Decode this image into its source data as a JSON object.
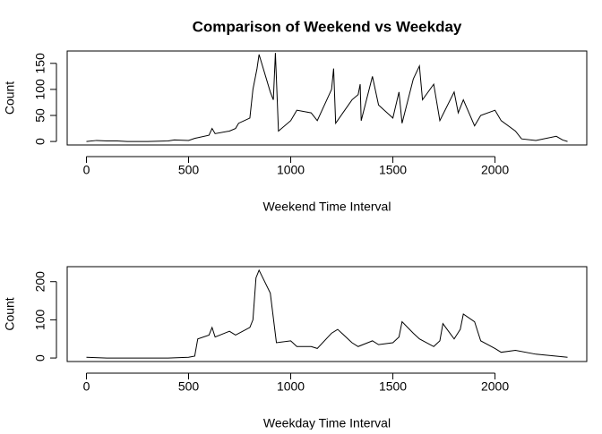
{
  "chart_data": [
    {
      "type": "line",
      "title": "Comparison of Weekend vs Weekday",
      "x_label": "Weekend Time Interval",
      "y_label": "Count",
      "color": "#000000",
      "x": [
        0,
        50,
        100,
        150,
        200,
        300,
        400,
        430,
        500,
        530,
        600,
        615,
        630,
        700,
        730,
        745,
        800,
        815,
        835,
        845,
        900,
        915,
        925,
        940,
        1000,
        1030,
        1100,
        1130,
        1200,
        1210,
        1220,
        1300,
        1330,
        1340,
        1345,
        1400,
        1430,
        1500,
        1530,
        1545,
        1600,
        1630,
        1645,
        1700,
        1730,
        1800,
        1820,
        1845,
        1900,
        1930,
        2000,
        2030,
        2100,
        2130,
        2200,
        2300,
        2330,
        2355
      ],
      "values": [
        0,
        2,
        1,
        1,
        0,
        0,
        1,
        3,
        2,
        6,
        12,
        25,
        15,
        20,
        25,
        35,
        45,
        100,
        140,
        167,
        95,
        80,
        170,
        20,
        40,
        60,
        55,
        40,
        100,
        140,
        35,
        80,
        90,
        110,
        40,
        125,
        70,
        45,
        95,
        35,
        120,
        145,
        80,
        110,
        40,
        95,
        55,
        80,
        30,
        50,
        60,
        40,
        20,
        5,
        2,
        10,
        3,
        0
      ],
      "xlim": [
        -94.2,
        2449.2
      ],
      "xticks": [
        0,
        500,
        1000,
        1500,
        2000
      ],
      "ylim": [
        -6.7,
        173.7
      ],
      "yticks": [
        0,
        50,
        100,
        150
      ]
    },
    {
      "type": "line",
      "x_label": "Weekday Time Interval",
      "y_label": "Count",
      "color": "#000000",
      "x": [
        0,
        100,
        200,
        300,
        400,
        500,
        530,
        545,
        600,
        615,
        630,
        700,
        730,
        800,
        815,
        830,
        845,
        900,
        930,
        1000,
        1030,
        1100,
        1130,
        1200,
        1230,
        1300,
        1330,
        1400,
        1430,
        1500,
        1530,
        1545,
        1600,
        1630,
        1700,
        1730,
        1745,
        1800,
        1830,
        1845,
        1900,
        1930,
        2000,
        2030,
        2100,
        2200,
        2300,
        2355
      ],
      "values": [
        2,
        0,
        0,
        0,
        0,
        2,
        5,
        50,
        60,
        80,
        55,
        70,
        60,
        80,
        100,
        210,
        230,
        170,
        40,
        45,
        30,
        30,
        25,
        65,
        75,
        40,
        30,
        45,
        35,
        40,
        55,
        95,
        65,
        50,
        30,
        45,
        90,
        50,
        75,
        115,
        95,
        45,
        25,
        15,
        20,
        10,
        5,
        2
      ],
      "xlim": [
        -94.2,
        2449.2
      ],
      "xticks": [
        0,
        500,
        1000,
        1500,
        2000
      ],
      "ylim": [
        -9.2,
        239.2
      ],
      "yticks": [
        0,
        100,
        200
      ]
    }
  ]
}
